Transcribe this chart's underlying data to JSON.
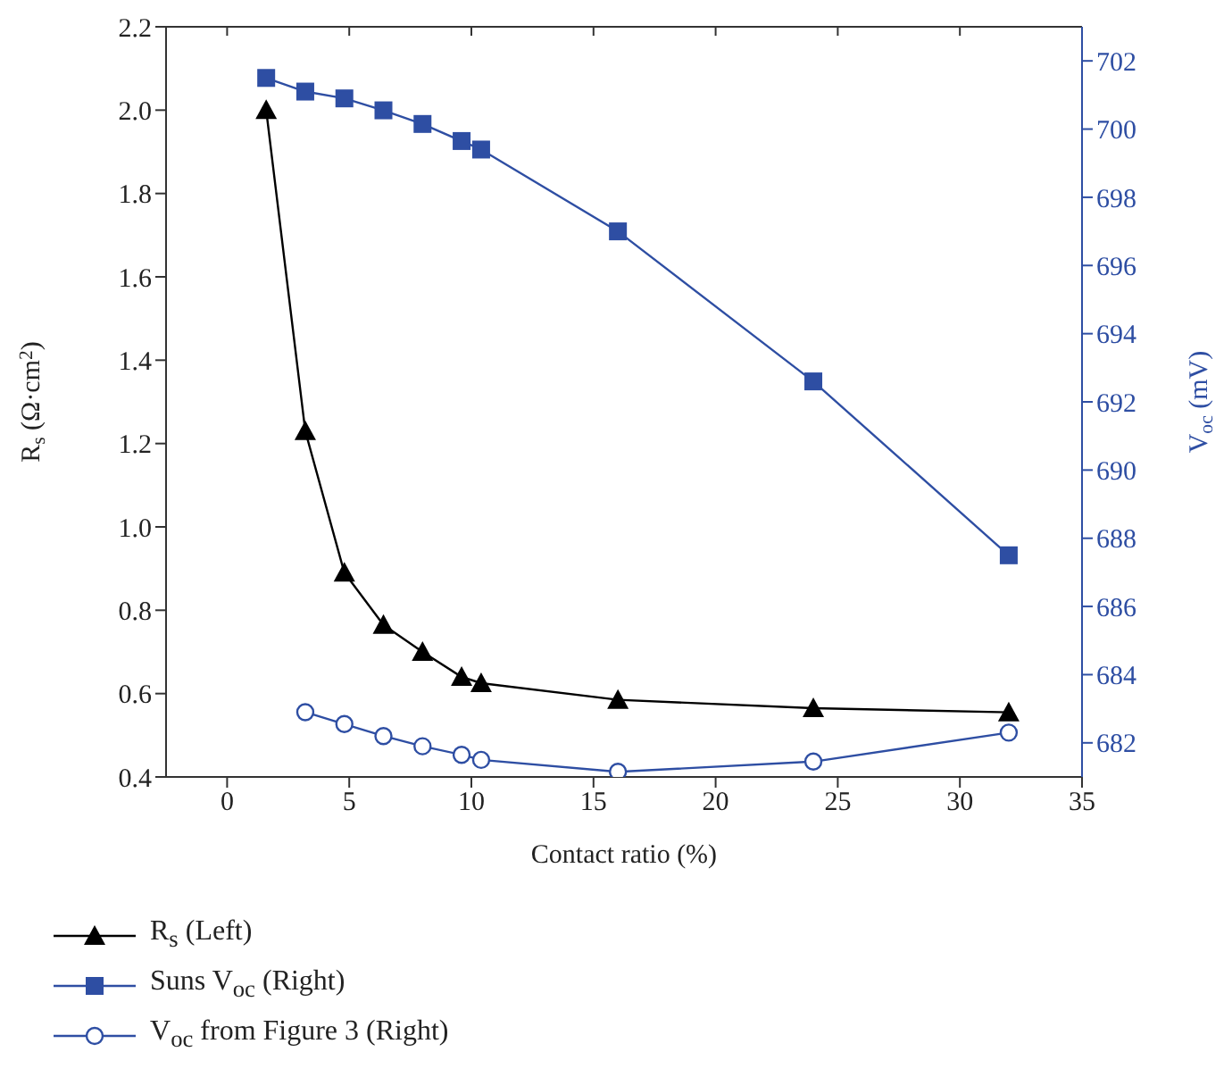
{
  "chart_data": {
    "type": "line",
    "xlabel": "Contact ratio (%)",
    "ylabel": "R$_{s}$ (Ω·cm$^{2}$)",
    "y2label": "V$_{oc}$ (mV)",
    "xlim": [
      -2.5,
      35
    ],
    "xticks": [
      0,
      5,
      10,
      15,
      20,
      25,
      30,
      35
    ],
    "ylim": [
      0.4,
      2.2
    ],
    "yticks": [
      0.4,
      0.6,
      0.8,
      {
        "value": 1,
        "label": "1.0"
      },
      1.2,
      1.4,
      1.6,
      1.8,
      {
        "value": 2,
        "label": "2.0"
      },
      2.2
    ],
    "y2lim": [
      681,
      703
    ],
    "y2ticks": [
      682,
      684,
      686,
      688,
      690,
      692,
      694,
      696,
      698,
      700,
      702
    ],
    "legend": "bottom left",
    "series": [
      {
        "name": "R$_{s}$ (Left)",
        "color": "#000000",
        "marker": "triangle",
        "x": [
          1.6,
          3.2,
          4.8,
          6.4,
          8,
          9.6,
          10.4,
          16,
          24,
          32
        ],
        "values": [
          2.0,
          1.23,
          0.89,
          0.765,
          0.7,
          0.64,
          0.625,
          0.585,
          0.565,
          0.555
        ]
      },
      {
        "name": "Suns V$_{oc}$ (Right)",
        "color": "#2e4ea3",
        "marker": "square",
        "axis": "y2",
        "x": [
          1.6,
          3.2,
          4.8,
          6.4,
          8,
          9.6,
          10.4,
          16,
          24,
          32
        ],
        "values": [
          701.5,
          701.1,
          700.9,
          700.55,
          700.15,
          699.65,
          699.4,
          697.0,
          692.6,
          687.5
        ]
      },
      {
        "name": "V$_{oc}$ from Figure 3 (Right)",
        "color": "#2e4ea3",
        "marker": "circle",
        "axis": "y2",
        "x": [
          3.2,
          4.8,
          6.4,
          8,
          9.6,
          10.4,
          16,
          24,
          32
        ],
        "values": [
          682.9,
          682.55,
          682.2,
          681.9,
          681.65,
          681.5,
          681.15,
          681.45,
          682.3
        ]
      }
    ]
  }
}
